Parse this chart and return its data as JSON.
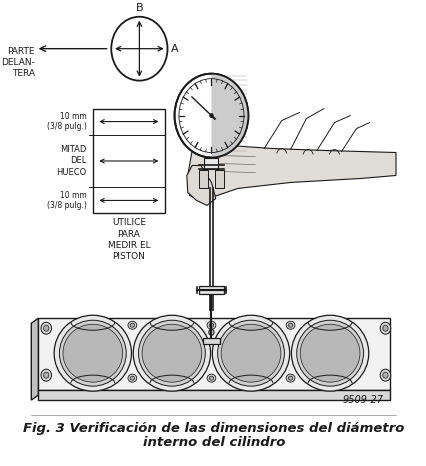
{
  "title_line1": "Fig. 3 Verificación de las dimensiones del diámetro",
  "title_line2": "interno del cilindro",
  "label_parte_delantera": "PARTE\nDELAN-\nTERA",
  "label_b": "B",
  "label_a": "A",
  "label_10mm_top": "10 mm\n(3/8 pulg.)",
  "label_mitad": "MITAD\nDEL\nHUECO",
  "label_10mm_bot": "10 mm\n(3/8 pulg.)",
  "label_utilice": "UTILICE\nPARA\nMEDIR EL\nPISTON",
  "ref_number": "9509-27",
  "bg_color": "#ffffff",
  "line_color": "#1a1a1a",
  "gray_light": "#d8d8d8",
  "gray_mid": "#b0b0b0",
  "gray_dark": "#888888",
  "title_fontsize": 9.5,
  "label_fontsize": 6.5,
  "small_fontsize": 5.5
}
